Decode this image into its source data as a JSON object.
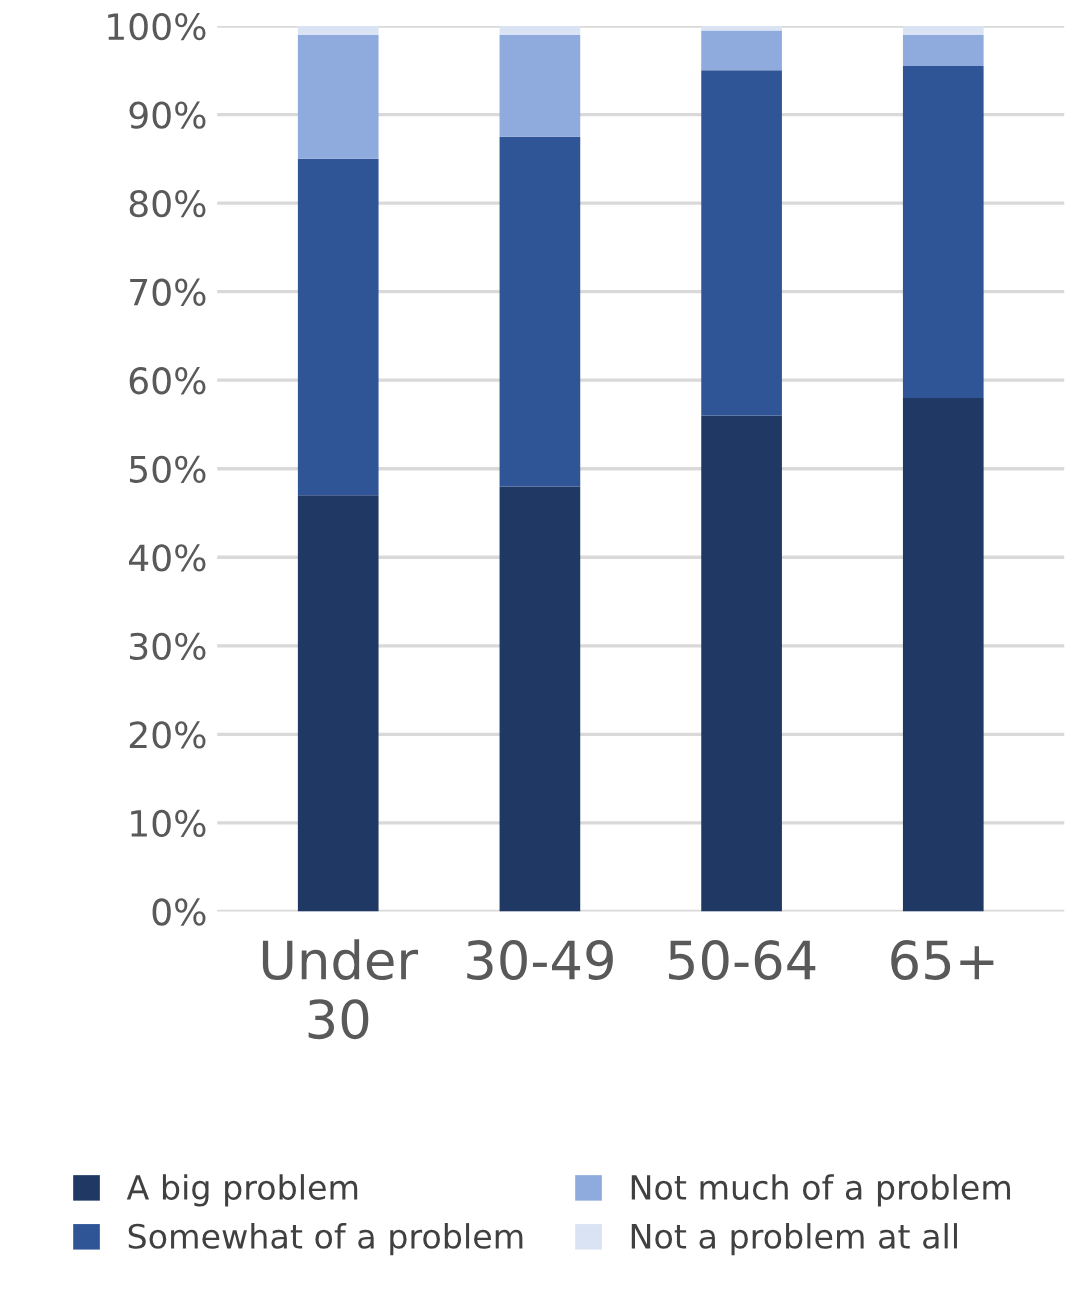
{
  "chart_data": {
    "type": "bar",
    "stacked": true,
    "categories": [
      "Under 30",
      "30-49",
      "50-64",
      "65+"
    ],
    "series": [
      {
        "name": "A big problem",
        "color": "#203864",
        "values": [
          47,
          48,
          56,
          58
        ]
      },
      {
        "name": "Somewhat of a problem",
        "color": "#2f5597",
        "values": [
          38,
          39.5,
          39,
          37.5
        ]
      },
      {
        "name": "Not much of a problem",
        "color": "#8faadc",
        "values": [
          14,
          11.5,
          4.5,
          3.5
        ]
      },
      {
        "name": "Not a problem at all",
        "color": "#dae3f3",
        "values": [
          1,
          1,
          0.5,
          1
        ]
      }
    ],
    "ylim": [
      0,
      100
    ],
    "yticks": [
      {
        "value": 0,
        "label": "0%"
      },
      {
        "value": 10,
        "label": "10%"
      },
      {
        "value": 20,
        "label": "20%"
      },
      {
        "value": 30,
        "label": "30%"
      },
      {
        "value": 40,
        "label": "40%"
      },
      {
        "value": 50,
        "label": "50%"
      },
      {
        "value": 60,
        "label": "60%"
      },
      {
        "value": 70,
        "label": "70%"
      },
      {
        "value": 80,
        "label": "80%"
      },
      {
        "value": 90,
        "label": "90%"
      },
      {
        "value": 100,
        "label": "100%"
      }
    ],
    "grid": "y",
    "legend": "bottom"
  }
}
